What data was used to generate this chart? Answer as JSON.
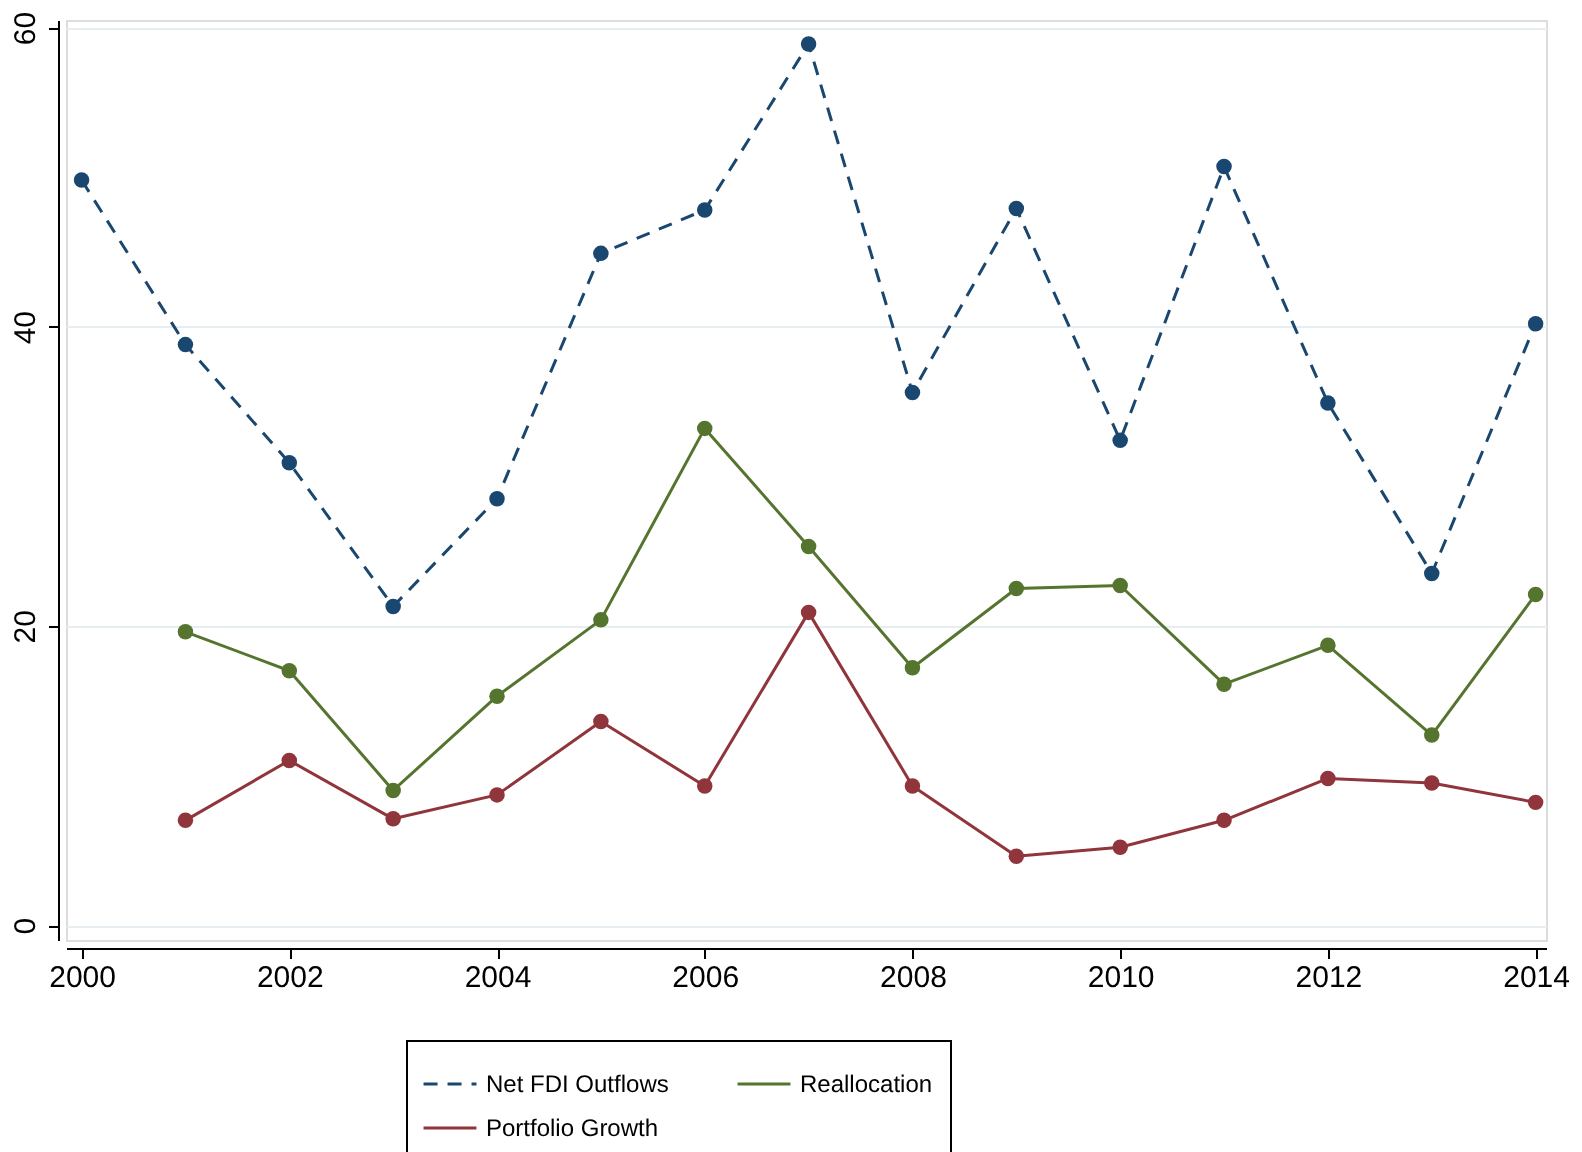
{
  "chart_data": {
    "type": "line",
    "x": [
      2000,
      2001,
      2002,
      2003,
      2004,
      2005,
      2006,
      2007,
      2008,
      2009,
      2010,
      2011,
      2012,
      2013,
      2014
    ],
    "xlim": [
      1999.85,
      2014.1
    ],
    "xticks": [
      2000,
      2002,
      2004,
      2006,
      2008,
      2010,
      2012,
      2014
    ],
    "ylim": [
      -1,
      60.5
    ],
    "yticks": [
      0,
      20,
      40,
      60
    ],
    "grid": "y",
    "legend": "bottom",
    "marker": "circle",
    "series": [
      {
        "name": "Net FDI Outflows",
        "color": "#1a476f",
        "line_style": "dashed",
        "values": [
          49.8,
          38.8,
          30.9,
          21.3,
          28.5,
          44.9,
          47.8,
          58.9,
          35.6,
          47.9,
          32.4,
          50.7,
          34.9,
          23.5,
          40.2
        ]
      },
      {
        "name": "Portfolio Growth",
        "color": "#90353b",
        "line_style": "solid",
        "values": [
          null,
          7.0,
          11.0,
          7.1,
          8.7,
          13.6,
          9.3,
          20.9,
          9.3,
          4.6,
          5.2,
          7.0,
          9.8,
          9.5,
          8.2
        ]
      },
      {
        "name": "Reallocation",
        "color": "#55752f",
        "line_style": "solid",
        "values": [
          null,
          19.6,
          17.0,
          9.0,
          15.3,
          20.4,
          33.2,
          25.3,
          17.2,
          22.5,
          22.7,
          16.1,
          18.7,
          12.7,
          22.1
        ]
      }
    ]
  }
}
